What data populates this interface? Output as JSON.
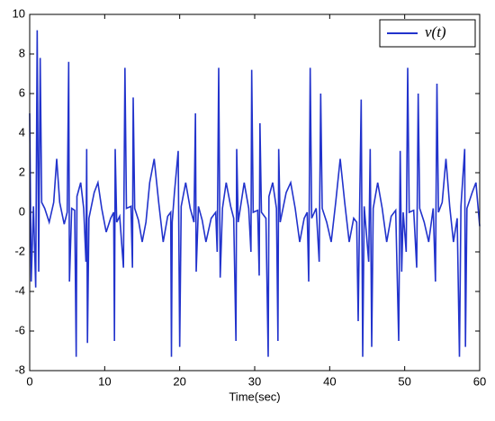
{
  "chart_data": {
    "type": "line",
    "xlabel": "Time(sec)",
    "xlim": [
      0,
      60
    ],
    "xticks": [
      0,
      10,
      20,
      30,
      40,
      50,
      60
    ],
    "ylim": [
      -8,
      10
    ],
    "yticks": [
      -8,
      -6,
      -4,
      -2,
      0,
      2,
      4,
      6,
      8,
      10
    ],
    "legend": "upper right",
    "series": [
      {
        "name": "v(t)",
        "color": "#2233cc",
        "x": [
          0,
          0.2,
          0.5,
          0.8,
          1.0,
          1.2,
          1.4,
          1.6,
          2.0,
          2.6,
          3.2,
          3.6,
          4.0,
          4.6,
          5.0,
          5.2,
          5.3,
          5.6,
          6.0,
          6.2,
          6.3,
          6.8,
          7.2,
          7.5,
          7.6,
          7.7,
          7.9,
          8.6,
          9.1,
          9.6,
          10.2,
          10.8,
          11.2,
          11.3,
          11.4,
          11.6,
          12.0,
          12.5,
          12.7,
          12.9,
          13.5,
          13.7,
          13.8,
          14.0,
          14.5,
          15.0,
          15.5,
          16.0,
          16.6,
          17.2,
          17.8,
          18.4,
          18.8,
          18.9,
          19.0,
          19.3,
          19.8,
          20.0,
          20.2,
          20.8,
          21.4,
          21.9,
          22.1,
          22.2,
          22.5,
          23.0,
          23.5,
          24.2,
          24.8,
          25.0,
          25.2,
          25.4,
          25.7,
          26.2,
          26.8,
          27.2,
          27.5,
          27.6,
          27.8,
          28.6,
          29.2,
          29.5,
          29.6,
          29.8,
          30.4,
          30.6,
          30.7,
          30.9,
          31.5,
          31.8,
          31.9,
          32.4,
          32.9,
          33.1,
          33.2,
          33.4,
          34.2,
          34.8,
          35.4,
          36.0,
          36.6,
          37.0,
          37.2,
          37.4,
          37.6,
          38.2,
          38.6,
          38.8,
          39.0,
          39.6,
          40.2,
          40.8,
          41.4,
          42.0,
          42.6,
          43.2,
          43.6,
          43.8,
          44.0,
          44.2,
          44.4,
          44.6,
          45.2,
          45.4,
          45.6,
          45.8,
          46.4,
          47.0,
          47.6,
          48.2,
          48.8,
          49.2,
          49.4,
          49.6,
          49.8,
          50.2,
          50.4,
          50.6,
          51.2,
          51.6,
          51.8,
          52.0,
          52.6,
          53.2,
          53.8,
          54.1,
          54.3,
          54.5,
          55.0,
          55.5,
          56.0,
          56.5,
          57.0,
          57.3,
          57.5,
          58.0,
          58.1,
          58.3,
          59.0,
          59.5,
          60.0
        ],
        "values": [
          5.0,
          -3.5,
          0.3,
          -3.8,
          9.2,
          -3.0,
          7.8,
          0.5,
          0.2,
          -0.5,
          0.5,
          2.7,
          0.5,
          -0.6,
          0,
          7.6,
          -3.5,
          0.2,
          0.1,
          -7.3,
          0.8,
          1.5,
          0.2,
          -2.5,
          3.2,
          -6.6,
          -0.3,
          1.0,
          1.5,
          0.2,
          -1.0,
          -0.3,
          0,
          -6.5,
          3.2,
          -0.5,
          -0.2,
          -2.8,
          7.3,
          0.2,
          0.3,
          -2.8,
          5.8,
          0.2,
          -0.4,
          -1.5,
          -0.5,
          1.5,
          2.7,
          0.5,
          -1.5,
          -0.2,
          0,
          -7.3,
          -0.5,
          1.0,
          3.1,
          -6.8,
          0.3,
          1.5,
          0.2,
          -0.5,
          5.0,
          -3.0,
          0.3,
          -0.4,
          -1.5,
          -0.3,
          0,
          -2.0,
          7.3,
          -3.3,
          0.2,
          1.5,
          0.3,
          -0.3,
          -6.5,
          3.2,
          -0.5,
          1.5,
          0.2,
          -2.0,
          7.2,
          0,
          0.1,
          -3.2,
          4.5,
          0,
          -0.3,
          -7.3,
          0.8,
          1.5,
          0.2,
          -6.5,
          3.2,
          -0.5,
          1.0,
          1.5,
          0.2,
          -1.5,
          -0.3,
          0,
          -3.5,
          7.3,
          -0.3,
          0.2,
          -2.5,
          6.0,
          0.2,
          -0.5,
          -1.5,
          0.5,
          2.7,
          0.5,
          -1.5,
          -0.3,
          -0.5,
          -5.5,
          0.5,
          5.7,
          -7.3,
          0.3,
          -2.5,
          3.2,
          -6.8,
          0.2,
          1.5,
          0.2,
          -1.5,
          -0.2,
          0.1,
          -6.5,
          3.1,
          -3.0,
          0,
          -2.0,
          7.3,
          0,
          0.1,
          -2.8,
          6.0,
          0.2,
          -0.5,
          -1.5,
          0.2,
          -3.5,
          6.5,
          0,
          0.5,
          2.7,
          0.3,
          -1.5,
          -0.3,
          -7.3,
          0.3,
          3.2,
          -6.8,
          0.2,
          1.0,
          1.5,
          -0.7
        ]
      }
    ]
  }
}
